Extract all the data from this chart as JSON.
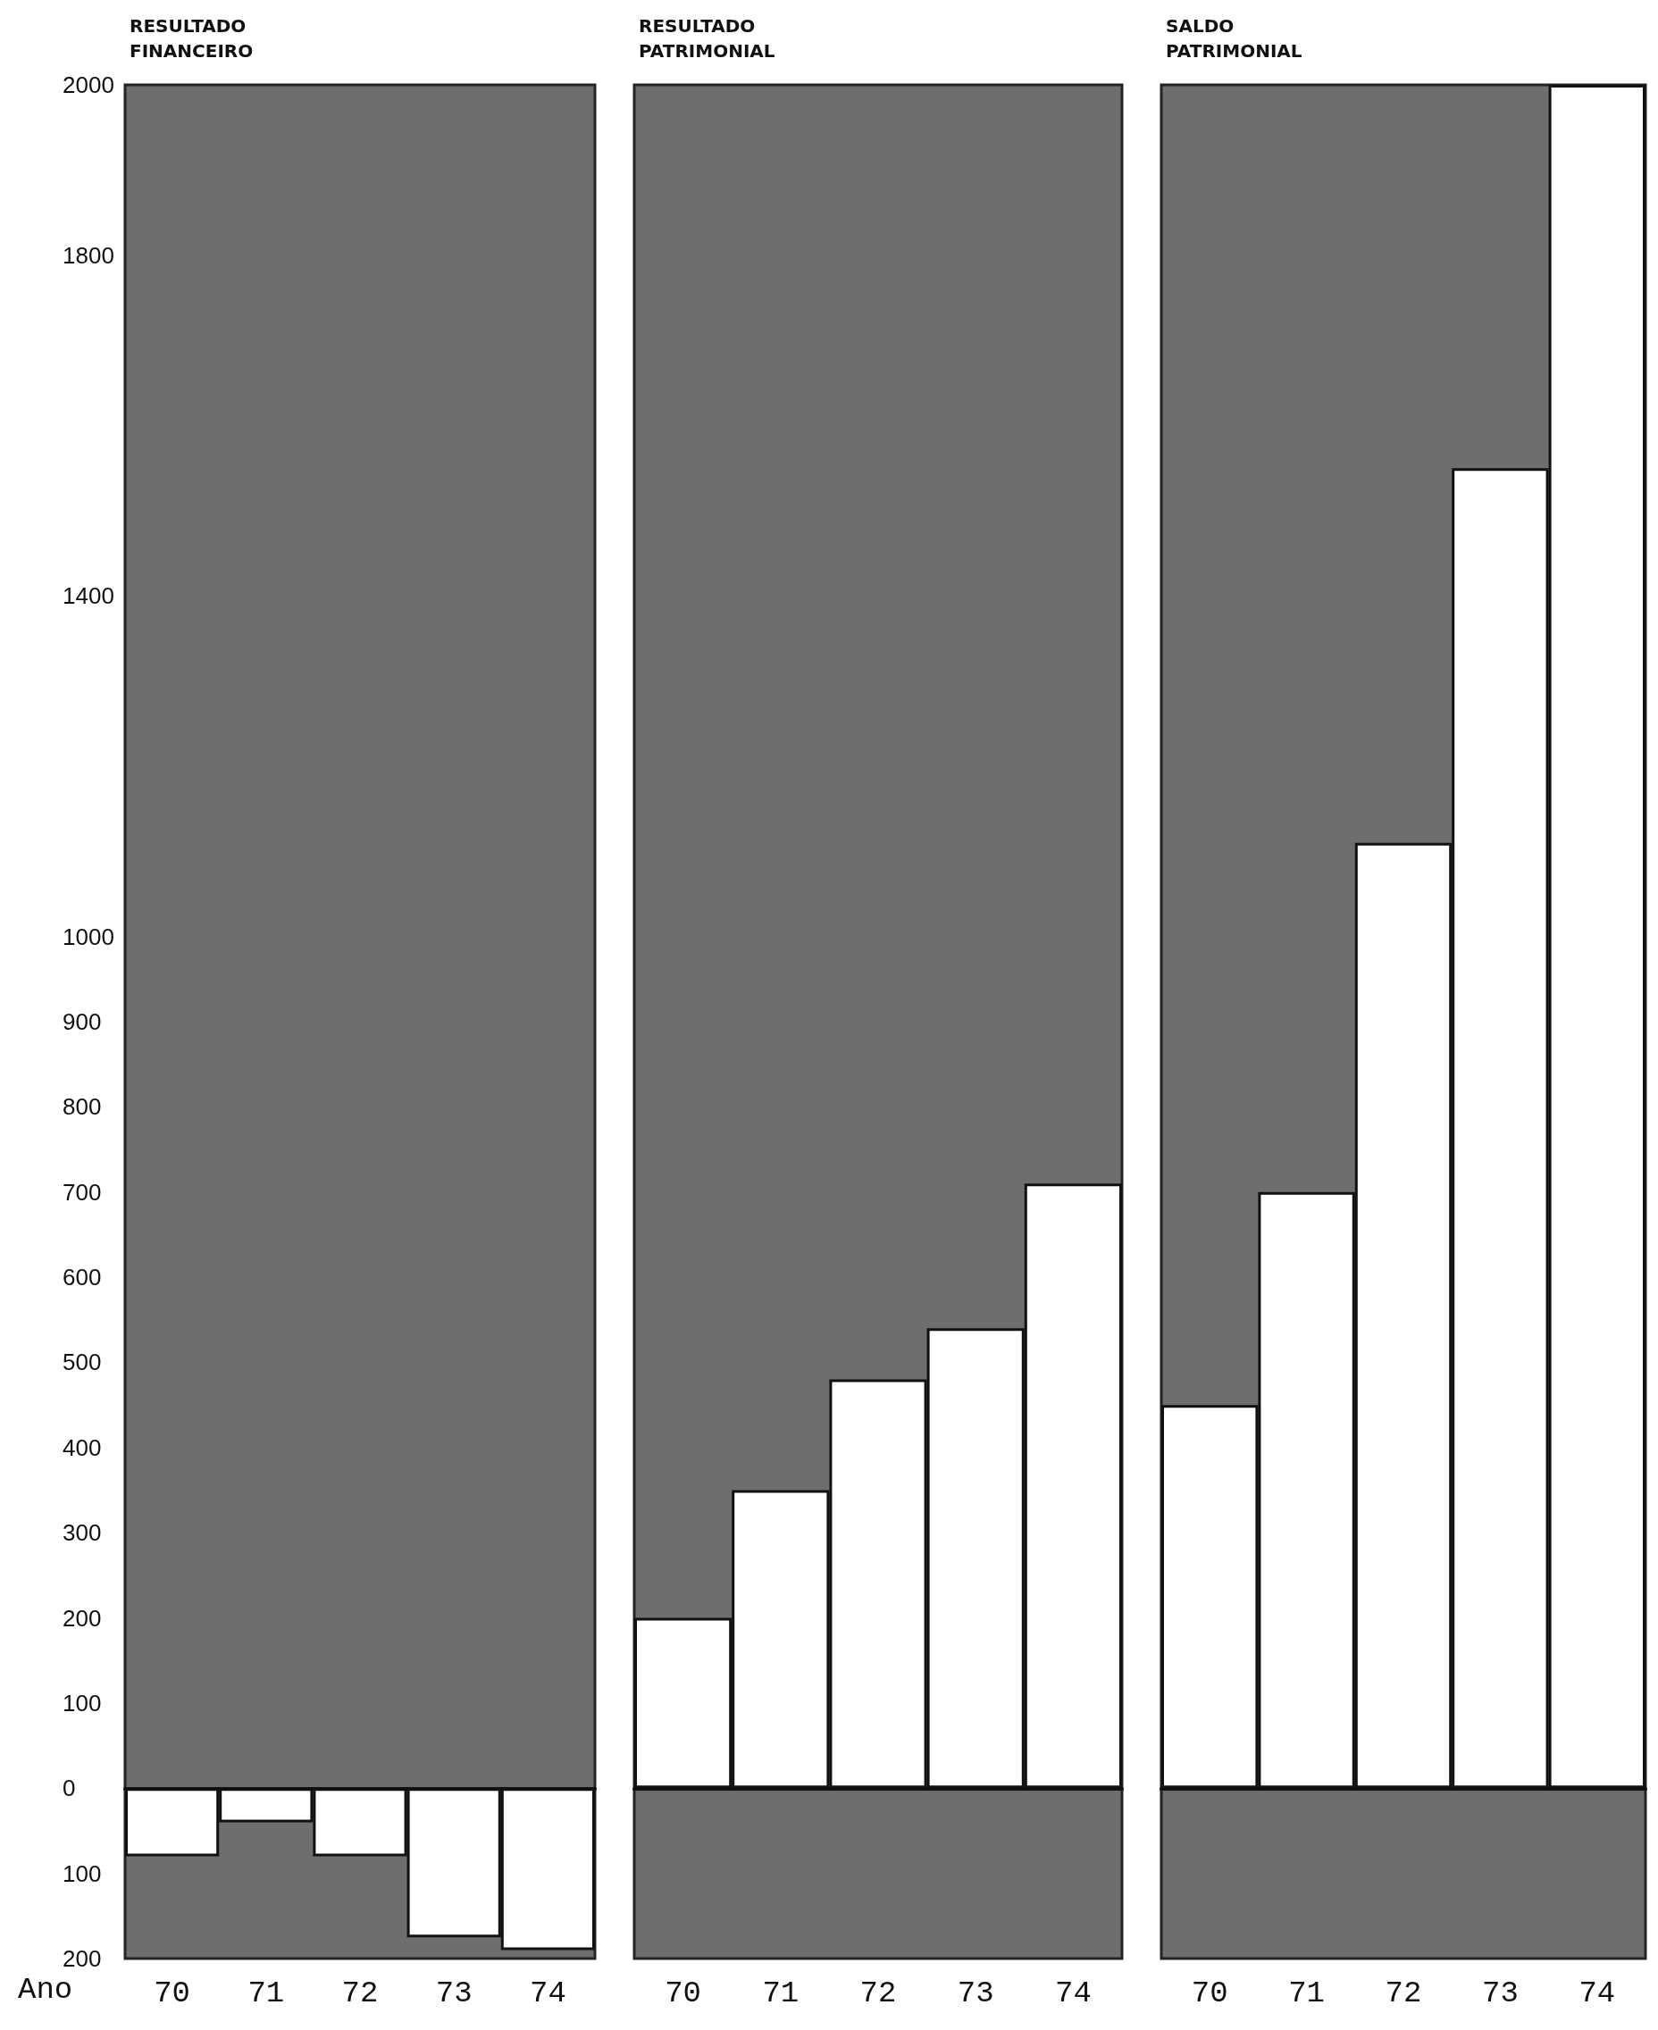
{
  "chart_data": [
    {
      "type": "bar",
      "title": "RESULTADO FINANCEIRO",
      "xlabel": "Ano",
      "categories": [
        "70",
        "71",
        "72",
        "73",
        "74"
      ],
      "series": [
        {
          "color": "#ffffff",
          "values": [
            -80,
            -40,
            -80,
            -175,
            -190
          ]
        }
      ],
      "ylim": [
        -200,
        2000
      ],
      "yticks": [
        {
          "value": -200,
          "label": "200"
        },
        {
          "value": -100,
          "label": "100"
        },
        0,
        100,
        200,
        300,
        400,
        500,
        600,
        700,
        800,
        900,
        1000,
        1400,
        1800,
        2000
      ]
    },
    {
      "type": "bar",
      "title": "RESULTADO PATRIMONIAL",
      "categories": [
        "70",
        "71",
        "72",
        "73",
        "74"
      ],
      "series": [
        {
          "color": "#ffffff",
          "values": [
            200,
            350,
            480,
            540,
            710
          ]
        }
      ],
      "ylim": [
        -200,
        2000
      ],
      "tick_labels": "x"
    },
    {
      "type": "bar",
      "title": "SALDO PATRIMONIAL",
      "categories": [
        "70",
        "71",
        "72",
        "73",
        "74"
      ],
      "series": [
        {
          "color": "#ffffff",
          "values": [
            450,
            700,
            1110,
            1550,
            2000
          ]
        }
      ],
      "ylim": [
        -200,
        2000
      ],
      "tick_labels": "x"
    }
  ]
}
